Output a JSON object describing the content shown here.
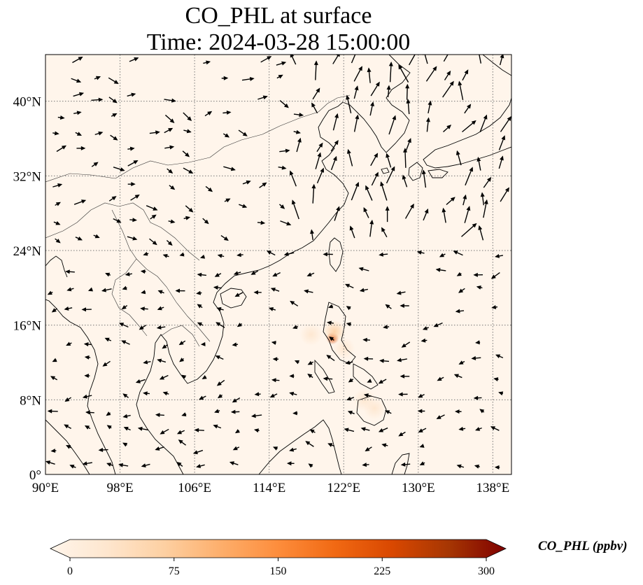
{
  "title": {
    "line1": "CO_PHL at surface",
    "line2": "Time: 2024-03-28 15:00:00"
  },
  "map": {
    "extent": {
      "lon": [
        90,
        140
      ],
      "lat": [
        0,
        45
      ]
    },
    "lon_ticks": [
      {
        "value": 90,
        "label": "90°E"
      },
      {
        "value": 98,
        "label": "98°E"
      },
      {
        "value": 106,
        "label": "106°E"
      },
      {
        "value": 114,
        "label": "114°E"
      },
      {
        "value": 122,
        "label": "122°E"
      },
      {
        "value": 130,
        "label": "130°E"
      },
      {
        "value": 138,
        "label": "138°E"
      }
    ],
    "lat_ticks": [
      {
        "value": 0,
        "label": "0°"
      },
      {
        "value": 8,
        "label": "8°N"
      },
      {
        "value": 16,
        "label": "16°N"
      },
      {
        "value": 24,
        "label": "24°N"
      },
      {
        "value": 32,
        "label": "32°N"
      },
      {
        "value": 40,
        "label": "40°N"
      }
    ],
    "gridlines": true,
    "background_color": "#fff5eb",
    "hotspots": [
      {
        "lon": 120.8,
        "lat": 14.6,
        "value": 220
      },
      {
        "lon": 121.0,
        "lat": 15.3,
        "value": 60
      },
      {
        "lon": 118.5,
        "lat": 15.0,
        "value": 25
      },
      {
        "lon": 122.0,
        "lat": 13.5,
        "value": 30
      },
      {
        "lon": 124.2,
        "lat": 8.0,
        "value": 35
      },
      {
        "lon": 125.3,
        "lat": 7.1,
        "value": 30
      },
      {
        "lon": 116.5,
        "lat": 13.8,
        "value": 15
      },
      {
        "lon": 114.0,
        "lat": 12.5,
        "value": 10
      }
    ]
  },
  "colorbar": {
    "label": "CO_PHL (ppbv)",
    "colormap": "OrRd",
    "min": 0,
    "max": 300,
    "extend": "both",
    "ticks": [
      {
        "value": 0,
        "label": "0"
      },
      {
        "value": 75,
        "label": "75"
      },
      {
        "value": 150,
        "label": "150"
      },
      {
        "value": 225,
        "label": "225"
      },
      {
        "value": 300,
        "label": "300"
      }
    ],
    "colors": [
      "#fff5eb",
      "#fee6ce",
      "#fdd0a2",
      "#fdae6b",
      "#fd8d3c",
      "#f16913",
      "#d94801",
      "#a63603",
      "#7f0000"
    ]
  }
}
